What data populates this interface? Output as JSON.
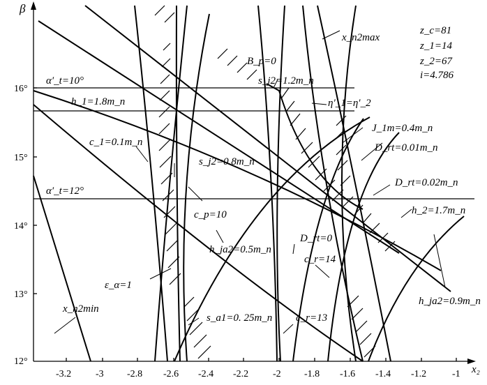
{
  "axes": {
    "y_label": "β",
    "x_label": "x₂",
    "y_ticks": [
      "16°",
      "15°",
      "14°",
      "13°",
      "12°"
    ],
    "x_ticks": [
      "-3.2",
      "-3",
      "-2.8",
      "-2.6",
      "-2.4",
      "-2.2",
      "-2",
      "-1.8",
      "-1.6",
      "-1.4",
      "-1.2",
      "-1"
    ]
  },
  "params": {
    "zc": "z_c=81",
    "z1": "z_1=14",
    "z2": "z_2=67",
    "i": "i=4.786"
  },
  "labels": {
    "alpha_t10": "α′_t=10°",
    "alpha_t12": "α′_t=12°",
    "h1": "h_1=1.8m_n",
    "c1": "c_1=0.1m_n",
    "x_n2min": "x_n2min",
    "x_n2max": "x_n2max",
    "eps_alpha": "ε_α=1",
    "sj2_08": "s_j2=0.8m_n",
    "sj2_12": "s_j2=1.2m_n",
    "cp": "c_p=10",
    "hja2_05": "h_ja2=0.5m_n",
    "sa1": "s_a1=0. 25m_n",
    "bp": "B_p=0",
    "eta": "η′_1=η′_2",
    "j1m": "J_1m=0.4m_n",
    "drt001": "D_rt=0.01m_n",
    "drt002": "D_rt=0.02m_n",
    "drt0": "D_rt=0",
    "h2": "h_2=1.7m_n",
    "cr14": "c_r=14",
    "cr13": "c_r=13",
    "hja2_09": "h_ja2=0.9m_n"
  }
}
